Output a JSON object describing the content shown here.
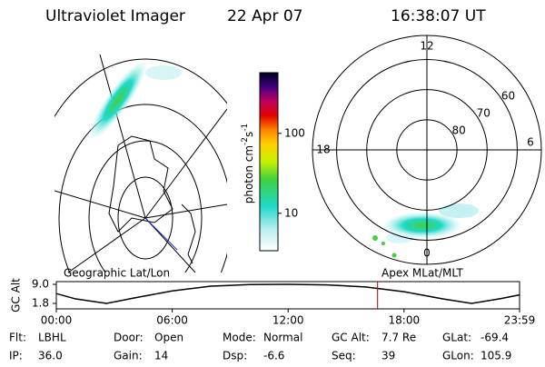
{
  "header": {
    "instrument": "Ultraviolet Imager",
    "date": "22 Apr 07",
    "time": "16:38:07 UT"
  },
  "colorbar": {
    "label": "photon cm",
    "exp1": "-2",
    "unit2": "s",
    "exp2": "-1",
    "log": true,
    "lim": [
      3.4,
      575
    ],
    "ticks": [
      100,
      10
    ]
  },
  "polar": {
    "mlt_labels": [
      {
        "value": 12,
        "angle": 90
      },
      {
        "value": 6,
        "angle": 0
      },
      {
        "value": 0,
        "angle": 270
      },
      {
        "value": 18,
        "angle": 180
      }
    ],
    "lat_circles": [
      60,
      70,
      80
    ],
    "lat_lim": [
      90,
      52
    ]
  },
  "timeline": {
    "left_title": "Geographic Lat/Lon",
    "right_title": "Apex MLat/MLT",
    "ylabel": "GC Alt",
    "ylim": [
      1.8,
      9.0
    ],
    "yticks": [
      {
        "value": 9.0,
        "label": "9.0"
      },
      {
        "value": 1.8,
        "label": "1.8"
      }
    ],
    "xlim": [
      0,
      23.98
    ],
    "xticks": [
      {
        "value": 0,
        "label": "00:00"
      },
      {
        "value": 6,
        "label": "06:00"
      },
      {
        "value": 12,
        "label": "12:00"
      },
      {
        "value": 18,
        "label": "18:00"
      },
      {
        "value": 23.98,
        "label": "23:59"
      }
    ],
    "hours": [
      0,
      1,
      2.6,
      4,
      6,
      8,
      10,
      12,
      14,
      16,
      18,
      20,
      21.5,
      23,
      23.98
    ],
    "alt": [
      5.5,
      3.5,
      1.8,
      3.8,
      6.5,
      8.3,
      8.9,
      9.0,
      8.8,
      8.0,
      6.2,
      3.5,
      1.8,
      3.6,
      5.0
    ],
    "current_hour": 16.63
  },
  "footer": [
    [
      {
        "label": "Flt:",
        "value": "LBHL"
      },
      {
        "label": "Door:",
        "value": "Open"
      },
      {
        "label": "Mode:",
        "value": "Normal"
      },
      {
        "label": "GC Alt:",
        "value": "7.7 Re"
      },
      {
        "label": "GLat:",
        "value": "-69.4"
      }
    ],
    [
      {
        "label": "IP:",
        "value": "36.0"
      },
      {
        "label": "Gain:",
        "value": "14"
      },
      {
        "label": "Dsp:",
        "value": "-6.6"
      },
      {
        "label": "Seq:",
        "value": "39"
      },
      {
        "label": "GLon:",
        "value": "105.9"
      }
    ]
  ]
}
